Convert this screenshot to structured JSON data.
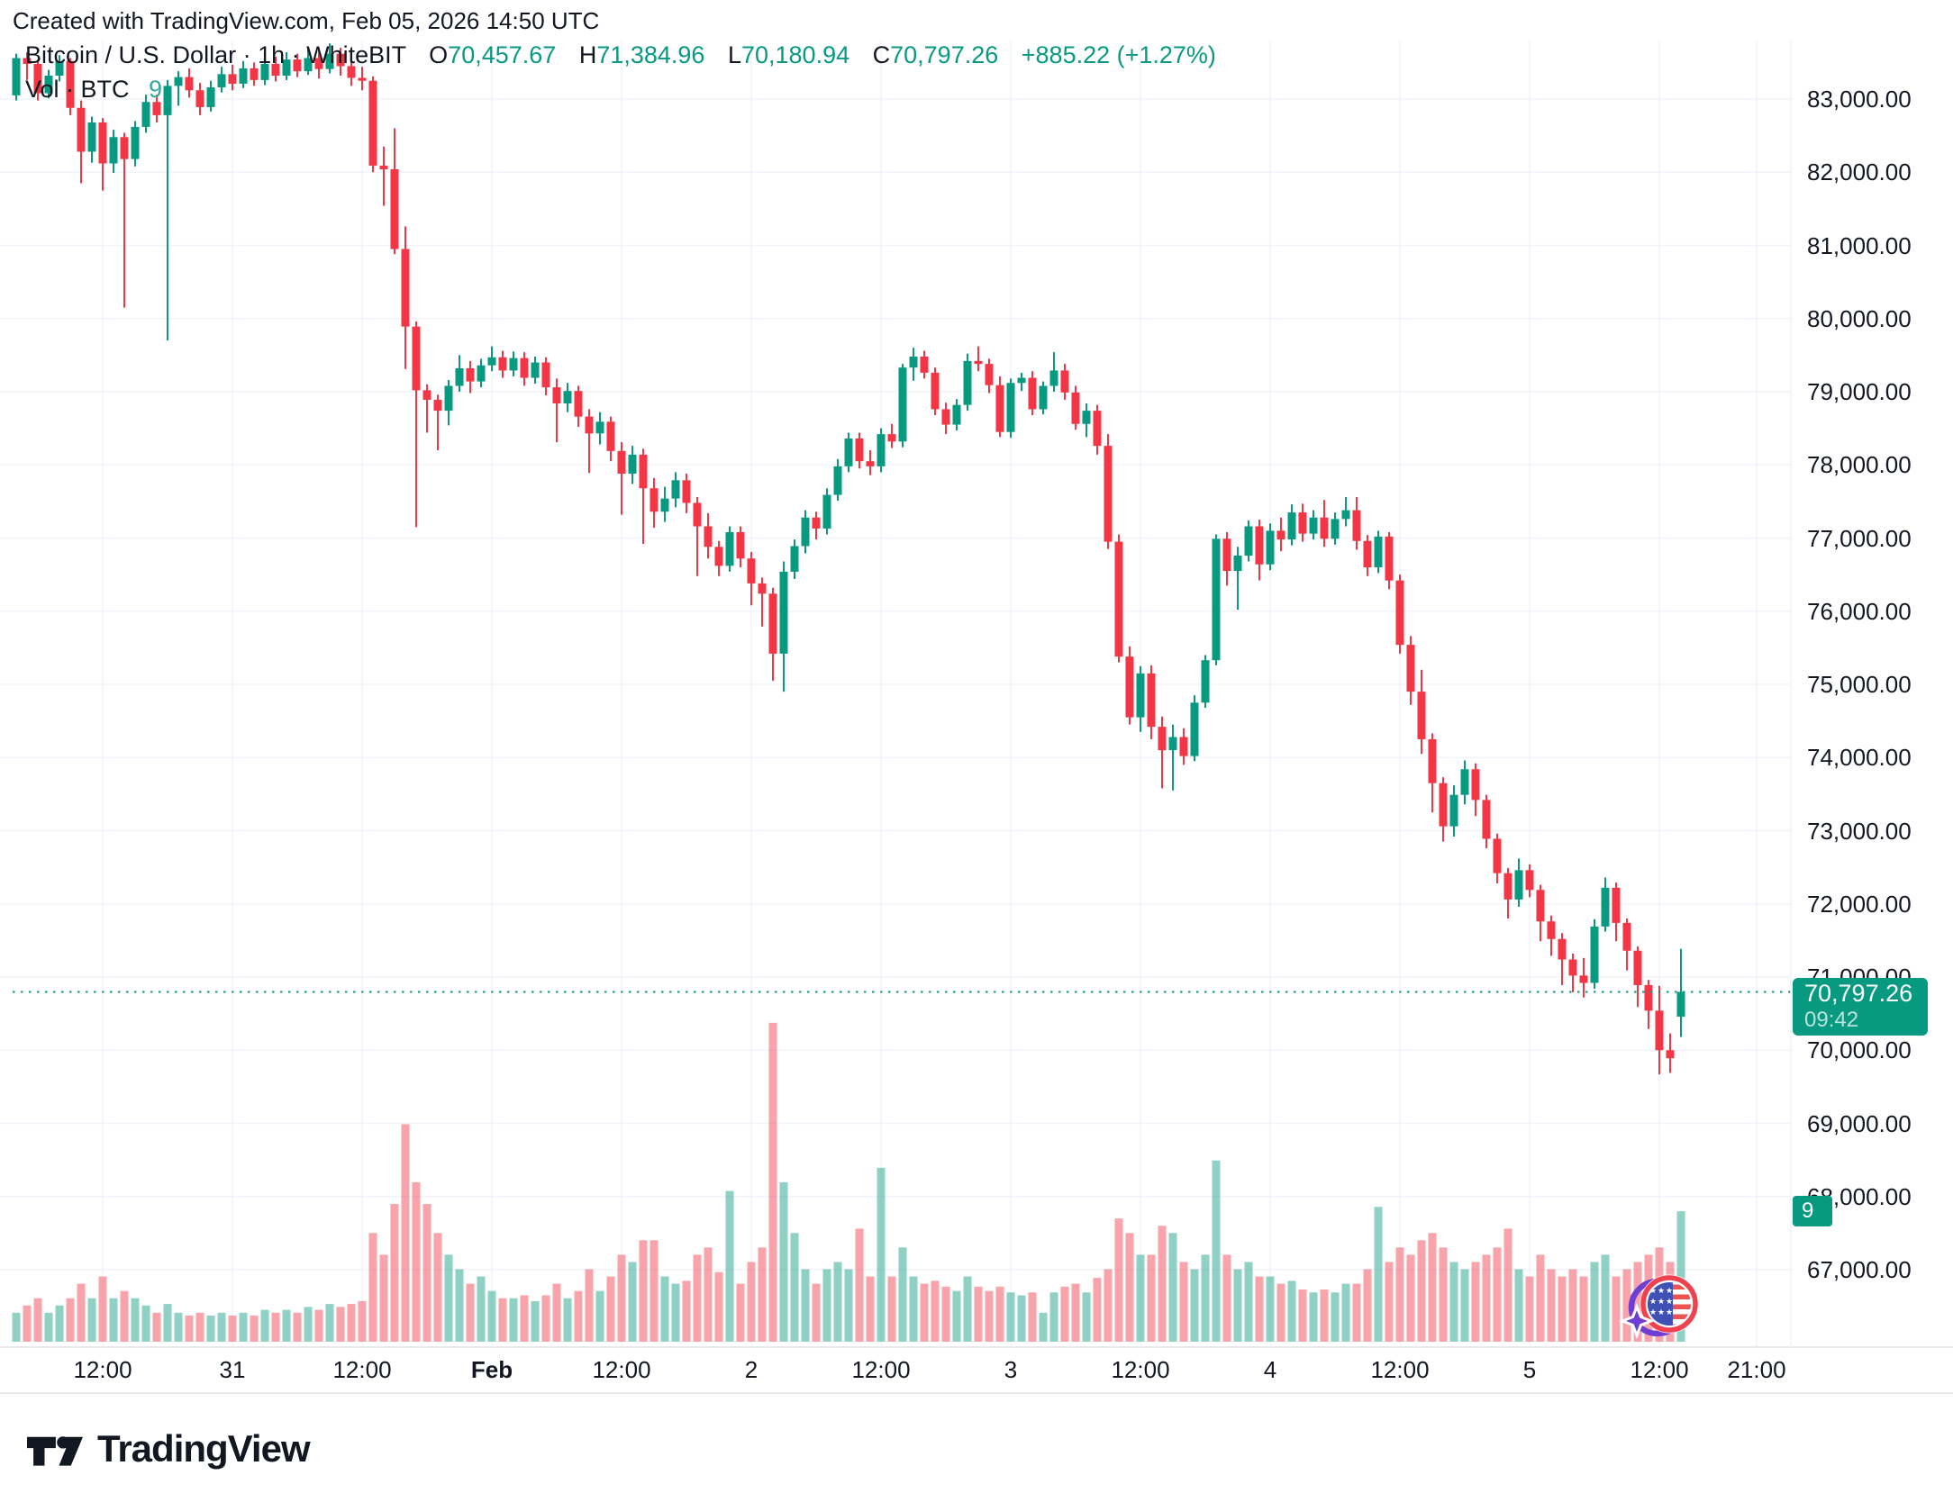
{
  "attribution": "Created with TradingView.com, Feb 05, 2026 14:50 UTC",
  "legend": {
    "symbol": "Bitcoin / U.S. Dollar · 1h · WhiteBIT",
    "o_label": "O",
    "o": "70,457.67",
    "h_label": "H",
    "h": "71,384.96",
    "l_label": "L",
    "l": "70,180.94",
    "c_label": "C",
    "c": "70,797.26",
    "change": "+885.22 (+1.27%)"
  },
  "vol_row": {
    "label": "Vol · BTC",
    "value": "9"
  },
  "price_badge": {
    "price": "70,797.26",
    "time": "09:42"
  },
  "vol_badge": "9",
  "logo": {
    "text": "TradingView"
  },
  "icons": {
    "logo_mark": "tradingview-logo-icon",
    "overlay": "us-flag-sparkle-icon"
  },
  "colors": {
    "up": "#089981",
    "down": "#f23645",
    "vol_up": "rgba(8,153,129,0.45)",
    "vol_down": "rgba(242,54,69,0.45)",
    "grid": "#f0f3fa",
    "axis_border": "#e0e3eb",
    "axis_text": "#131722",
    "badge_bg": "#089981",
    "dotted_line": "#089981"
  },
  "chart_data": {
    "type": "candlestick",
    "title": "Bitcoin / U.S. Dollar",
    "interval": "1h",
    "exchange": "WhiteBIT",
    "volume_unit": "BTC",
    "time_start": "Jan 30 04:00",
    "time_end": "Feb 5 14:00 (UTC)",
    "ylim": [
      66500,
      83800
    ],
    "grid": true,
    "last_price": 70797.26,
    "price_axis_labels": [
      "83,000.00",
      "82,000.00",
      "81,000.00",
      "80,000.00",
      "79,000.00",
      "78,000.00",
      "77,000.00",
      "76,000.00",
      "75,000.00",
      "74,000.00",
      "73,000.00",
      "72,000.00",
      "71,000.00",
      "70,000.00",
      "69,000.00",
      "68,000.00",
      "67,000.00"
    ],
    "time_labels": [
      {
        "label": "12:00",
        "i": 8,
        "bold": false
      },
      {
        "label": "31",
        "i": 20,
        "bold": false
      },
      {
        "label": "12:00",
        "i": 32,
        "bold": false
      },
      {
        "label": "Feb",
        "i": 44,
        "bold": true
      },
      {
        "label": "12:00",
        "i": 56,
        "bold": false
      },
      {
        "label": "2",
        "i": 68,
        "bold": false
      },
      {
        "label": "12:00",
        "i": 80,
        "bold": false
      },
      {
        "label": "3",
        "i": 92,
        "bold": false
      },
      {
        "label": "12:00",
        "i": 104,
        "bold": false
      },
      {
        "label": "4",
        "i": 116,
        "bold": false
      },
      {
        "label": "12:00",
        "i": 128,
        "bold": false
      },
      {
        "label": "5",
        "i": 140,
        "bold": false
      },
      {
        "label": "12:00",
        "i": 152,
        "bold": false
      },
      {
        "label": "21:00",
        "i": 161,
        "bold": false
      }
    ],
    "candles_format": [
      "open",
      "high",
      "low",
      "close",
      "volume_btc"
    ],
    "candles": [
      [
        83050,
        83620,
        82980,
        83560,
        2
      ],
      [
        83560,
        83640,
        83260,
        83480,
        2.5
      ],
      [
        83480,
        83540,
        82980,
        83080,
        3
      ],
      [
        83080,
        83400,
        83010,
        83320,
        2
      ],
      [
        83320,
        83600,
        83240,
        83520,
        2.5
      ],
      [
        83520,
        83560,
        82780,
        82880,
        3
      ],
      [
        82880,
        82980,
        81850,
        82280,
        4
      ],
      [
        82280,
        82760,
        82130,
        82680,
        3
      ],
      [
        82680,
        82740,
        81750,
        82120,
        4.5
      ],
      [
        82120,
        82580,
        81990,
        82480,
        3
      ],
      [
        82480,
        82540,
        80150,
        82180,
        3.5
      ],
      [
        82180,
        82700,
        82080,
        82620,
        3
      ],
      [
        82620,
        83060,
        82540,
        82960,
        2.5
      ],
      [
        82960,
        83060,
        82680,
        82780,
        2
      ],
      [
        82780,
        83260,
        79700,
        83180,
        2.6
      ],
      [
        83180,
        83380,
        82910,
        83300,
        2
      ],
      [
        83300,
        83420,
        83020,
        83120,
        1.8
      ],
      [
        83120,
        83220,
        82780,
        82890,
        2
      ],
      [
        82890,
        83250,
        82830,
        83160,
        1.8
      ],
      [
        83160,
        83440,
        83090,
        83340,
        2
      ],
      [
        83340,
        83470,
        83120,
        83210,
        1.8
      ],
      [
        83210,
        83520,
        83150,
        83420,
        2
      ],
      [
        83420,
        83500,
        83180,
        83260,
        1.8
      ],
      [
        83260,
        83560,
        83190,
        83480,
        2.2
      ],
      [
        83480,
        83580,
        83240,
        83320,
        2
      ],
      [
        83320,
        83640,
        83260,
        83540,
        2.2
      ],
      [
        83540,
        83620,
        83300,
        83380,
        2
      ],
      [
        83380,
        83720,
        83330,
        83560,
        2.4
      ],
      [
        83560,
        83700,
        83280,
        83410,
        2.2
      ],
      [
        83410,
        83760,
        83350,
        83620,
        2.6
      ],
      [
        83620,
        83700,
        83320,
        83450,
        2.4
      ],
      [
        83450,
        83600,
        83180,
        83290,
        2.6
      ],
      [
        83290,
        83440,
        83120,
        83250,
        2.8
      ],
      [
        83250,
        83310,
        82000,
        82090,
        7.5
      ],
      [
        82090,
        82350,
        81540,
        82040,
        6
      ],
      [
        82040,
        82600,
        80880,
        80950,
        9.5
      ],
      [
        80950,
        81260,
        79310,
        79890,
        15
      ],
      [
        79890,
        79960,
        77150,
        79020,
        11
      ],
      [
        79020,
        79100,
        78440,
        78890,
        9.5
      ],
      [
        78890,
        78960,
        78200,
        78740,
        7.5
      ],
      [
        78740,
        79160,
        78540,
        79080,
        6
      ],
      [
        79080,
        79500,
        79000,
        79320,
        5
      ],
      [
        79320,
        79420,
        78980,
        79140,
        4
      ],
      [
        79140,
        79450,
        79060,
        79360,
        4.5
      ],
      [
        79360,
        79620,
        79280,
        79470,
        3.5
      ],
      [
        79470,
        79560,
        79190,
        79290,
        3
      ],
      [
        79290,
        79550,
        79210,
        79460,
        3
      ],
      [
        79460,
        79540,
        79080,
        79190,
        3.2
      ],
      [
        79190,
        79480,
        79110,
        79400,
        2.8
      ],
      [
        79400,
        79470,
        78950,
        79060,
        3.2
      ],
      [
        79060,
        79180,
        78310,
        78840,
        4
      ],
      [
        78840,
        79120,
        78720,
        79010,
        3
      ],
      [
        79010,
        79080,
        78520,
        78660,
        3.5
      ],
      [
        78660,
        78760,
        77890,
        78430,
        5
      ],
      [
        78430,
        78720,
        78280,
        78590,
        3.5
      ],
      [
        78590,
        78660,
        78050,
        78190,
        4.5
      ],
      [
        78190,
        78310,
        77320,
        77880,
        6
      ],
      [
        77880,
        78260,
        77740,
        78140,
        5.5
      ],
      [
        78140,
        78220,
        76920,
        77680,
        7
      ],
      [
        77680,
        77820,
        77140,
        77360,
        7
      ],
      [
        77360,
        77700,
        77220,
        77540,
        4.5
      ],
      [
        77540,
        77900,
        77420,
        77790,
        4
      ],
      [
        77790,
        77880,
        77340,
        77480,
        4.2
      ],
      [
        77480,
        77560,
        76480,
        77160,
        6
      ],
      [
        77160,
        77340,
        76720,
        76880,
        6.5
      ],
      [
        76880,
        76960,
        76480,
        76620,
        4.8
      ],
      [
        76620,
        77160,
        76540,
        77080,
        10.4
      ],
      [
        77080,
        77160,
        76600,
        76720,
        4
      ],
      [
        76720,
        76810,
        76080,
        76380,
        5.5
      ],
      [
        76380,
        76460,
        75790,
        76240,
        6.5
      ],
      [
        76240,
        76320,
        75050,
        75420,
        22
      ],
      [
        75420,
        76680,
        74900,
        76540,
        11
      ],
      [
        76540,
        76980,
        76440,
        76890,
        7.5
      ],
      [
        76890,
        77380,
        76790,
        77280,
        5
      ],
      [
        77280,
        77360,
        76980,
        77130,
        4
      ],
      [
        77130,
        77680,
        77050,
        77590,
        5
      ],
      [
        77590,
        78080,
        77510,
        77980,
        5.5
      ],
      [
        77980,
        78440,
        77900,
        78360,
        5
      ],
      [
        78360,
        78440,
        77950,
        78050,
        7.8
      ],
      [
        78050,
        78200,
        77860,
        77980,
        4.5
      ],
      [
        77980,
        78500,
        77900,
        78420,
        12
      ],
      [
        78420,
        78560,
        78230,
        78320,
        4.5
      ],
      [
        78320,
        79380,
        78240,
        79330,
        6.5
      ],
      [
        79330,
        79600,
        79150,
        79480,
        4.5
      ],
      [
        79480,
        79560,
        79180,
        79260,
        4
      ],
      [
        79260,
        79330,
        78680,
        78760,
        4.2
      ],
      [
        78760,
        78850,
        78420,
        78550,
        3.8
      ],
      [
        78550,
        78900,
        78470,
        78820,
        3.5
      ],
      [
        78820,
        79520,
        78740,
        79420,
        4.5
      ],
      [
        79420,
        79620,
        79280,
        79380,
        3.8
      ],
      [
        79380,
        79450,
        78980,
        79090,
        3.5
      ],
      [
        79090,
        79210,
        78380,
        78450,
        3.8
      ],
      [
        78450,
        79180,
        78370,
        79120,
        3.4
      ],
      [
        79120,
        79260,
        79010,
        79190,
        3.2
      ],
      [
        79190,
        79280,
        78680,
        78760,
        3.4
      ],
      [
        78760,
        79140,
        78690,
        79080,
        2
      ],
      [
        79080,
        79540,
        79000,
        79290,
        3.4
      ],
      [
        79290,
        79380,
        78890,
        78990,
        3.8
      ],
      [
        78990,
        79080,
        78480,
        78560,
        4
      ],
      [
        78560,
        78840,
        78380,
        78740,
        3.4
      ],
      [
        78740,
        78820,
        78140,
        78260,
        4.4
      ],
      [
        78260,
        78420,
        76850,
        76950,
        5
      ],
      [
        76950,
        77050,
        75300,
        75380,
        8.5
      ],
      [
        75380,
        75520,
        74450,
        74550,
        7.5
      ],
      [
        74550,
        75250,
        74350,
        75150,
        6
      ],
      [
        75150,
        75260,
        74250,
        74420,
        6
      ],
      [
        74420,
        74560,
        73580,
        74100,
        8
      ],
      [
        74100,
        74450,
        73550,
        74280,
        7.5
      ],
      [
        74280,
        74400,
        73900,
        74020,
        5.5
      ],
      [
        74020,
        74850,
        73950,
        74750,
        5
      ],
      [
        74750,
        75400,
        74680,
        75330,
        6
      ],
      [
        75330,
        77050,
        75260,
        76990,
        12.5
      ],
      [
        76990,
        77080,
        76350,
        76550,
        6
      ],
      [
        76550,
        76880,
        76020,
        76760,
        5
      ],
      [
        76760,
        77240,
        76680,
        77160,
        5.5
      ],
      [
        77160,
        77250,
        76420,
        76640,
        4.5
      ],
      [
        76640,
        77200,
        76560,
        77100,
        4.5
      ],
      [
        77100,
        77280,
        76820,
        76980,
        4
      ],
      [
        76980,
        77460,
        76900,
        77350,
        4.2
      ],
      [
        77350,
        77470,
        76950,
        77060,
        3.6
      ],
      [
        77060,
        77380,
        76980,
        77280,
        3.4
      ],
      [
        77280,
        77520,
        76880,
        76990,
        3.6
      ],
      [
        76990,
        77350,
        76910,
        77260,
        3.4
      ],
      [
        77260,
        77560,
        77160,
        77380,
        4
      ],
      [
        77380,
        77560,
        76840,
        76960,
        4
      ],
      [
        76960,
        77040,
        76480,
        76600,
        5
      ],
      [
        76600,
        77100,
        76520,
        77020,
        9.3
      ],
      [
        77020,
        77080,
        76300,
        76420,
        5.5
      ],
      [
        76420,
        76500,
        75420,
        75540,
        6.5
      ],
      [
        75540,
        75660,
        74720,
        74900,
        6
      ],
      [
        74900,
        75200,
        74050,
        74250,
        7
      ],
      [
        74250,
        74330,
        73250,
        73650,
        7.5
      ],
      [
        73650,
        73730,
        72850,
        73060,
        6.5
      ],
      [
        73060,
        73620,
        72920,
        73490,
        5.5
      ],
      [
        73490,
        73960,
        73360,
        73840,
        5
      ],
      [
        73840,
        73920,
        73200,
        73420,
        5.5
      ],
      [
        73420,
        73490,
        72760,
        72890,
        6
      ],
      [
        72890,
        72960,
        72280,
        72420,
        6.5
      ],
      [
        72420,
        72490,
        71800,
        72060,
        7.8
      ],
      [
        72060,
        72620,
        71960,
        72460,
        5
      ],
      [
        72460,
        72540,
        72090,
        72190,
        4.5
      ],
      [
        72190,
        72260,
        71490,
        71760,
        6
      ],
      [
        71760,
        71840,
        71290,
        71520,
        5
      ],
      [
        71520,
        71600,
        70890,
        71240,
        4.5
      ],
      [
        71240,
        71320,
        70790,
        71020,
        5
      ],
      [
        71020,
        71260,
        70720,
        70920,
        4.5
      ],
      [
        70920,
        71790,
        70840,
        71690,
        5.5
      ],
      [
        71690,
        72360,
        71620,
        72220,
        6
      ],
      [
        72220,
        72290,
        71490,
        71740,
        4.5
      ],
      [
        71740,
        71800,
        71090,
        71360,
        5
      ],
      [
        71360,
        71420,
        70590,
        70890,
        5.5
      ],
      [
        70890,
        70960,
        70290,
        70540,
        6
      ],
      [
        70540,
        70880,
        69670,
        70000,
        6.5
      ],
      [
        70000,
        70230,
        69690,
        69890,
        5.5
      ],
      [
        70457.67,
        71384.96,
        70180.94,
        70797.26,
        9
      ]
    ]
  }
}
